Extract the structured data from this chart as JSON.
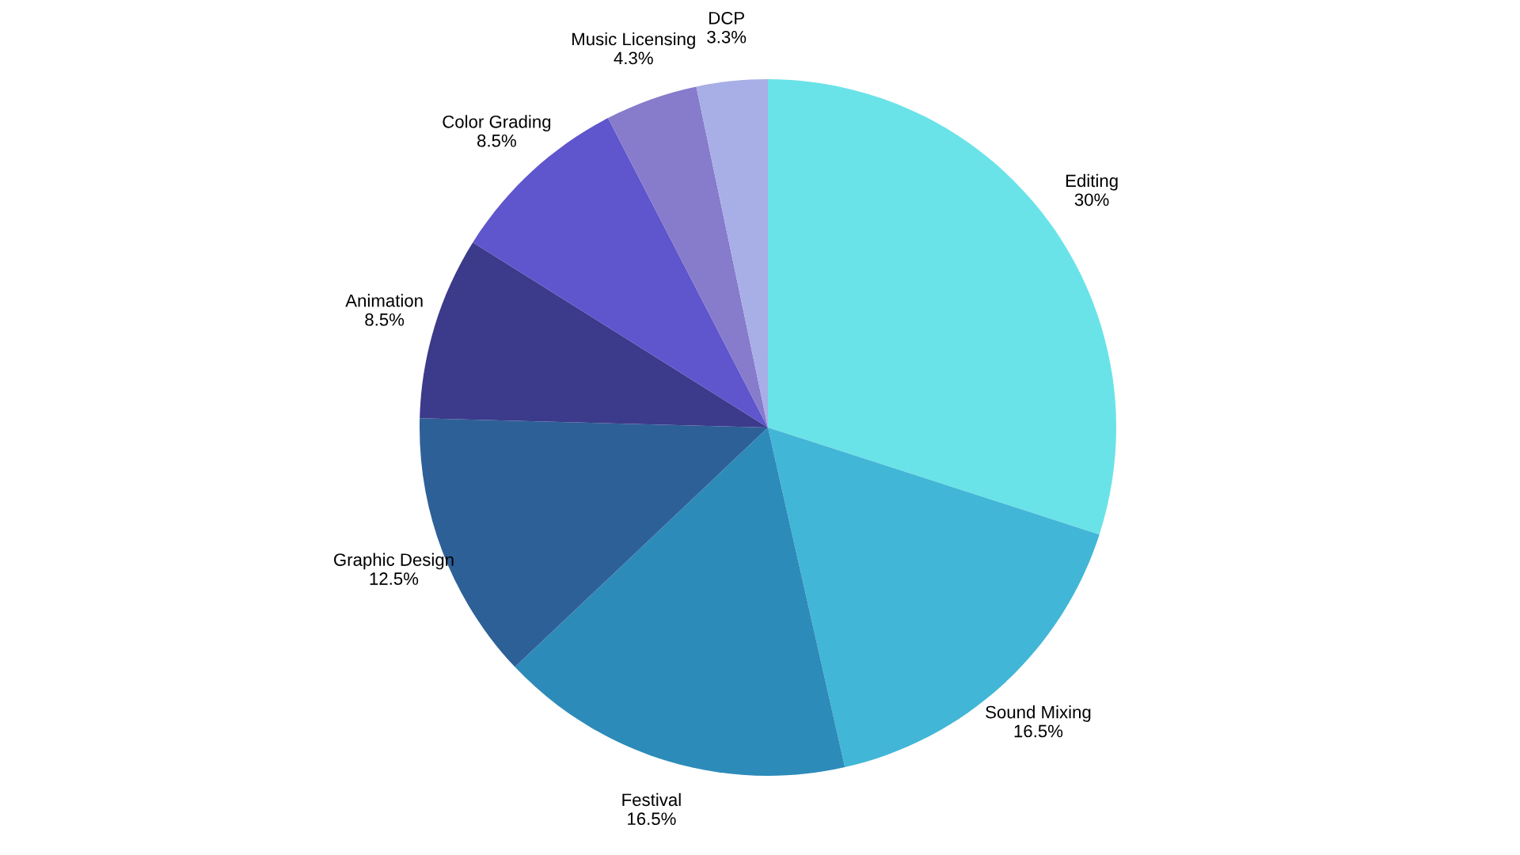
{
  "chart_data": {
    "type": "pie",
    "categories": [
      "Editing",
      "Sound Mixing",
      "Festival",
      "Graphic Design",
      "Animation",
      "Color Grading",
      "Music Licensing",
      "DCP"
    ],
    "values": [
      30,
      16.5,
      16.5,
      12.5,
      8.5,
      8.5,
      4.3,
      3.3
    ],
    "value_labels": [
      "30%",
      "16.5%",
      "16.5%",
      "12.5%",
      "8.5%",
      "8.5%",
      "4.3%",
      "3.3%"
    ],
    "colors": [
      "#6ae3e8",
      "#42b6d6",
      "#2d8bb9",
      "#2e6098",
      "#3c3a8a",
      "#5f55cc",
      "#877bcc",
      "#a8aee6"
    ],
    "legend": false
  }
}
